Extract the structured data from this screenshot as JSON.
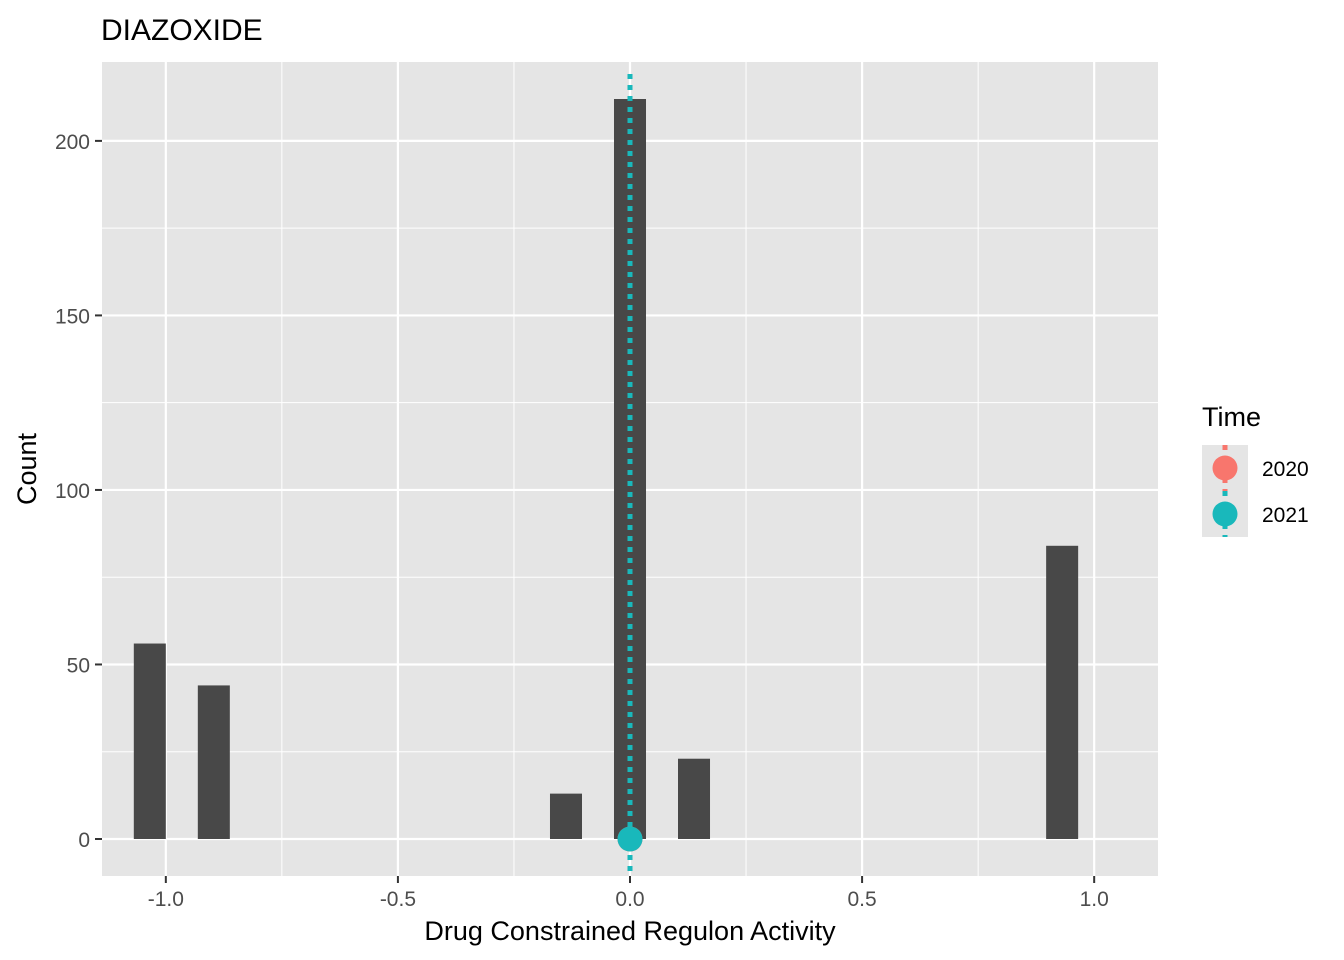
{
  "chart_data": {
    "type": "bar",
    "title": "DIAZOXIDE",
    "xlabel": "Drug Constrained Regulon Activity",
    "ylabel": "Count",
    "xlim": [
      -1.1375,
      1.1375
    ],
    "ylim": [
      -10.6,
      222.6
    ],
    "x_ticks": [
      -1.0,
      -0.5,
      0.0,
      0.5,
      1.0
    ],
    "x_tick_labels": [
      "-1.0",
      "-0.5",
      "0.0",
      "0.5",
      "1.0"
    ],
    "y_ticks": [
      0,
      50,
      100,
      150,
      200
    ],
    "y_tick_labels": [
      "0",
      "50",
      "100",
      "150",
      "200"
    ],
    "bin_width": 0.06897,
    "bars": [
      {
        "x": -1.0345,
        "count": 56
      },
      {
        "x": -0.8966,
        "count": 44
      },
      {
        "x": -0.1379,
        "count": 13
      },
      {
        "x": 0.0,
        "count": 212
      },
      {
        "x": 0.1379,
        "count": 23
      },
      {
        "x": 0.931,
        "count": 84
      }
    ],
    "bar_color": "#484848",
    "grid": true,
    "panel_background": "#e5e5e5",
    "series": [
      {
        "name": "2020",
        "color": "#f8766d",
        "mean_x": 0.0,
        "point_y": 0
      },
      {
        "name": "2021",
        "color": "#19b8bb",
        "mean_x": 0.0,
        "point_y": 0
      }
    ],
    "legend": {
      "title": "Time",
      "position": "right"
    }
  }
}
